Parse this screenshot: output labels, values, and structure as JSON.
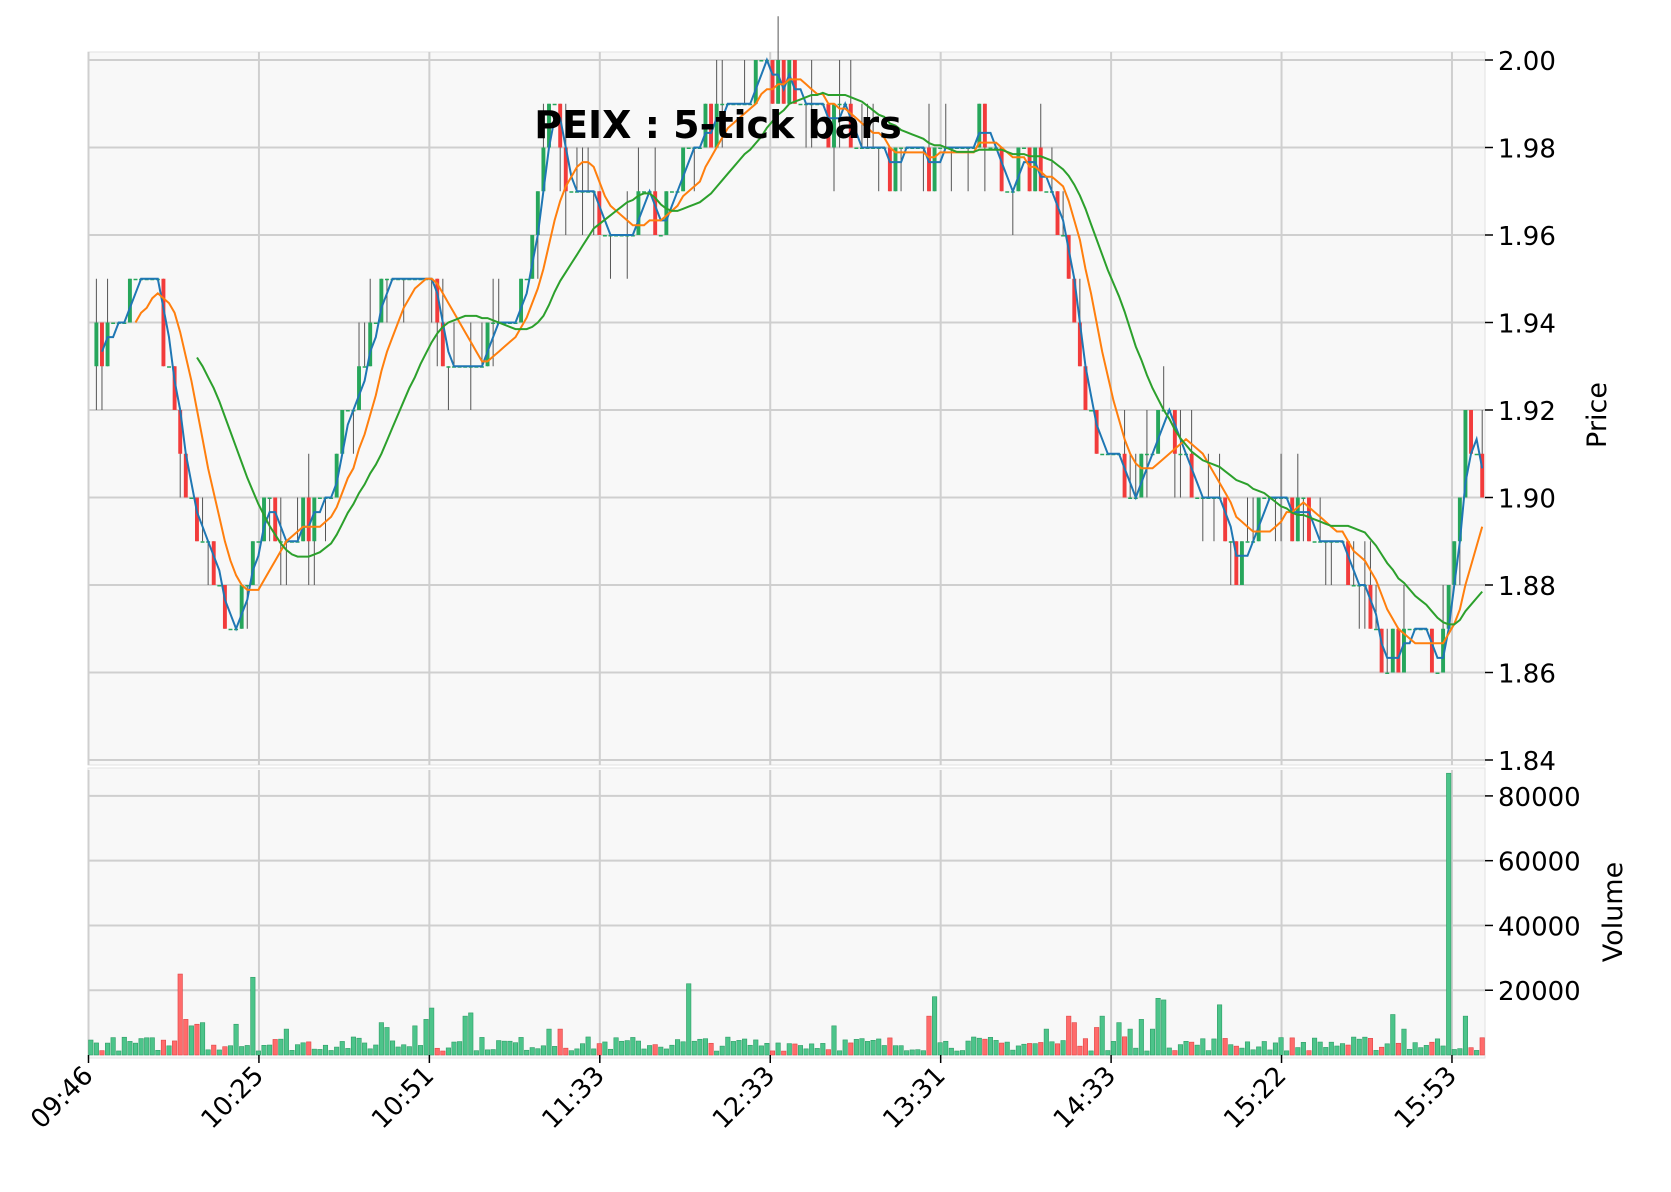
{
  "chart_data": {
    "type": "candlestick",
    "title": "PEIX : 5-tick bars",
    "price_axis": {
      "label": "Price",
      "ylim": [
        1.84,
        2.0
      ],
      "ticks": [
        "1.84",
        "1.86",
        "1.88",
        "1.90",
        "1.92",
        "1.94",
        "1.96",
        "1.98",
        "2.00"
      ],
      "side": "right"
    },
    "volume_axis": {
      "label": "Volume",
      "ylim": [
        0,
        88000
      ],
      "ticks": [
        "20000",
        "40000",
        "60000",
        "80000"
      ],
      "side": "right"
    },
    "x_tick_labels": [
      "09:46",
      "10:25",
      "10:51",
      "11:33",
      "12:33",
      "13:31",
      "14:33",
      "15:22",
      "15:53"
    ],
    "colors": {
      "up": "#26a65b",
      "down": "#f23b3b",
      "ma_short": "#1f77b4",
      "ma_mid": "#ff7f0e",
      "ma_long": "#2ca02c",
      "grid": "#cfcfcf",
      "panel_bg": "#f8f8f8"
    },
    "grid": true,
    "price_keypoints": [
      [
        0,
        1.93
      ],
      [
        4,
        1.94
      ],
      [
        8,
        1.95
      ],
      [
        11,
        1.95
      ],
      [
        14,
        1.93
      ],
      [
        17,
        1.9
      ],
      [
        22,
        1.88
      ],
      [
        25,
        1.865
      ],
      [
        28,
        1.88
      ],
      [
        31,
        1.9
      ],
      [
        36,
        1.89
      ],
      [
        41,
        1.895
      ],
      [
        46,
        1.92
      ],
      [
        51,
        1.945
      ],
      [
        56,
        1.95
      ],
      [
        60,
        1.95
      ],
      [
        64,
        1.93
      ],
      [
        68,
        1.925
      ],
      [
        72,
        1.94
      ],
      [
        76,
        1.94
      ],
      [
        79,
        1.96
      ],
      [
        82,
        1.99
      ],
      [
        85,
        1.975
      ],
      [
        88,
        1.97
      ],
      [
        92,
        1.965
      ],
      [
        96,
        1.96
      ],
      [
        100,
        1.965
      ],
      [
        104,
        1.97
      ],
      [
        107,
        1.98
      ],
      [
        111,
        1.985
      ],
      [
        115,
        1.99
      ],
      [
        119,
        1.995
      ],
      [
        123,
        1.993
      ],
      [
        127,
        1.992
      ],
      [
        131,
        1.988
      ],
      [
        135,
        1.985
      ],
      [
        139,
        1.98
      ],
      [
        143,
        1.975
      ],
      [
        147,
        1.98
      ],
      [
        151,
        1.975
      ],
      [
        155,
        1.98
      ],
      [
        159,
        1.985
      ],
      [
        163,
        1.97
      ],
      [
        167,
        1.975
      ],
      [
        171,
        1.97
      ],
      [
        174,
        1.96
      ],
      [
        177,
        1.93
      ],
      [
        180,
        1.915
      ],
      [
        184,
        1.905
      ],
      [
        187,
        1.9
      ],
      [
        190,
        1.915
      ],
      [
        193,
        1.92
      ],
      [
        196,
        1.905
      ],
      [
        199,
        1.9
      ],
      [
        202,
        1.895
      ],
      [
        205,
        1.883
      ],
      [
        207,
        1.885
      ],
      [
        210,
        1.905
      ],
      [
        213,
        1.905
      ],
      [
        216,
        1.895
      ],
      [
        220,
        1.89
      ],
      [
        224,
        1.885
      ],
      [
        227,
        1.88
      ],
      [
        229,
        1.875
      ],
      [
        232,
        1.86
      ],
      [
        235,
        1.865
      ],
      [
        238,
        1.87
      ],
      [
        241,
        1.865
      ],
      [
        243,
        1.88
      ],
      [
        246,
        1.915
      ],
      [
        249,
        1.905
      ]
    ],
    "bar_count": 250,
    "volume_spikes": [
      [
        16,
        25000
      ],
      [
        17,
        11000
      ],
      [
        18,
        9000
      ],
      [
        19,
        9500
      ],
      [
        20,
        10000
      ],
      [
        26,
        9500
      ],
      [
        29,
        24000
      ],
      [
        35,
        8000
      ],
      [
        52,
        10000
      ],
      [
        53,
        8500
      ],
      [
        58,
        9000
      ],
      [
        60,
        11000
      ],
      [
        61,
        14500
      ],
      [
        67,
        12000
      ],
      [
        68,
        13000
      ],
      [
        82,
        8000
      ],
      [
        84,
        8000
      ],
      [
        107,
        22000
      ],
      [
        133,
        9000
      ],
      [
        150,
        12000
      ],
      [
        151,
        18000
      ],
      [
        171,
        8000
      ],
      [
        175,
        12000
      ],
      [
        176,
        10000
      ],
      [
        180,
        8500
      ],
      [
        181,
        12000
      ],
      [
        184,
        10000
      ],
      [
        186,
        8000
      ],
      [
        188,
        11000
      ],
      [
        190,
        8000
      ],
      [
        191,
        17500
      ],
      [
        192,
        17000
      ],
      [
        202,
        15500
      ],
      [
        233,
        12500
      ],
      [
        235,
        8000
      ],
      [
        243,
        87000
      ],
      [
        246,
        12000
      ]
    ]
  }
}
